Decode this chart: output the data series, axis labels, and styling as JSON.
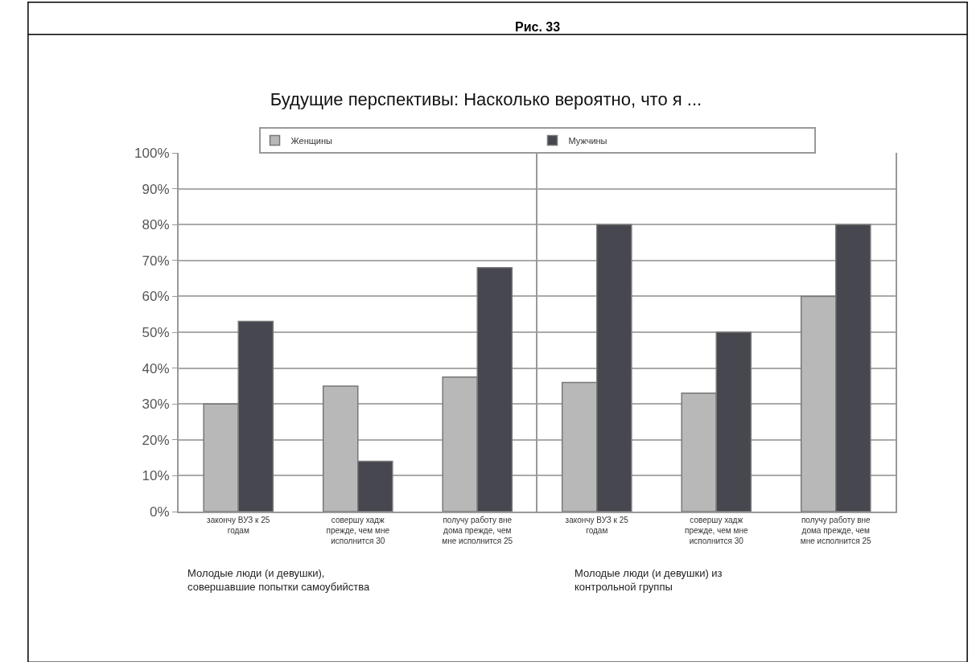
{
  "chart_data": [
    {
      "type": "bar",
      "title": "Будущие перспективы: Насколько вероятно, что я ...",
      "xlabel": "Молодые люди (и девушки), совершавшие попытки самоубийства",
      "annotations": [
        "Рис. 33"
      ],
      "categories": [
        "закончу ВУЗ к 25 годам",
        "совершу хадж прежде, чем мне исполнится 30",
        "получу работу вне дома прежде, чем мне исполнится 25"
      ],
      "series": [
        {
          "name": "Женщины",
          "color": "#b8b8b8",
          "values": [
            30,
            35,
            37.5
          ]
        },
        {
          "name": "Мужчины",
          "color": "#46474f",
          "values": [
            53,
            14,
            68
          ]
        }
      ],
      "ylim": [
        0,
        100
      ],
      "yticks": [
        {
          "value": 0,
          "label": "0%"
        },
        {
          "value": 10,
          "label": "10%"
        },
        {
          "value": 20,
          "label": "20%"
        },
        {
          "value": 30,
          "label": "30%"
        },
        {
          "value": 40,
          "label": "40%"
        },
        {
          "value": 50,
          "label": "50%"
        },
        {
          "value": 60,
          "label": "60%"
        },
        {
          "value": 70,
          "label": "70%"
        },
        {
          "value": 80,
          "label": "80%"
        },
        {
          "value": 90,
          "label": "90%"
        },
        {
          "value": 100,
          "label": "100%"
        }
      ],
      "grid": "y",
      "legend": "top"
    },
    {
      "type": "bar",
      "xlabel": "Молодые люди (и девушки) из контрольной группы",
      "categories": [
        "закончу ВУЗ к 25 годам",
        "совершу хадж прежде, чем мне исполнится 30",
        "получу работу вне дома прежде, чем мне исполнится 25"
      ],
      "series": [
        {
          "color": "#b8b8b8",
          "values": [
            36,
            33,
            60
          ]
        },
        {
          "color": "#46474f",
          "values": [
            80,
            50,
            80
          ]
        }
      ],
      "ylim": [
        0,
        100
      ],
      "tick_labels": "x",
      "grid": "y"
    }
  ]
}
